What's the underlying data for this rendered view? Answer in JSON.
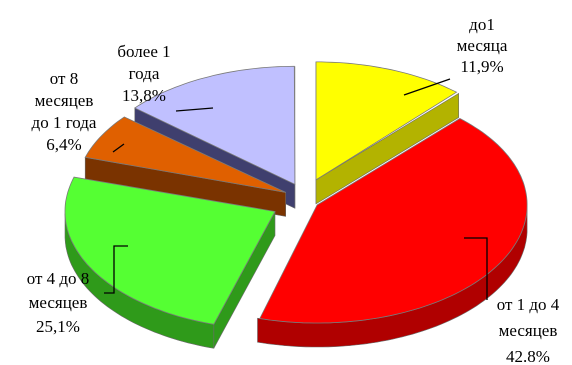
{
  "chart_data": {
    "type": "pie",
    "style": "3d-exploded",
    "slices": [
      {
        "lines": [
          "до1",
          "месяца",
          "11,9%"
        ],
        "value": 11.9,
        "color": "#ffff00",
        "side_color": "#b3b300"
      },
      {
        "lines": [
          "от 1 до 4",
          "месяцев",
          "42.8%"
        ],
        "value": 42.8,
        "color": "#ff0000",
        "side_color": "#b00000"
      },
      {
        "lines": [
          "от 4 до 8",
          "месяцев",
          "25,1%"
        ],
        "value": 25.1,
        "color": "#55ff33",
        "side_color": "#2f9a1a"
      },
      {
        "lines": [
          "от 8",
          "месяцев",
          "до 1 года",
          "6,4%"
        ],
        "value": 6.4,
        "color": "#e06000",
        "side_color": "#7a3300"
      },
      {
        "lines": [
          "более 1",
          "года",
          "13,8%"
        ],
        "value": 13.8,
        "color": "#c0c0ff",
        "side_color": "#3f3f6e"
      }
    ]
  }
}
